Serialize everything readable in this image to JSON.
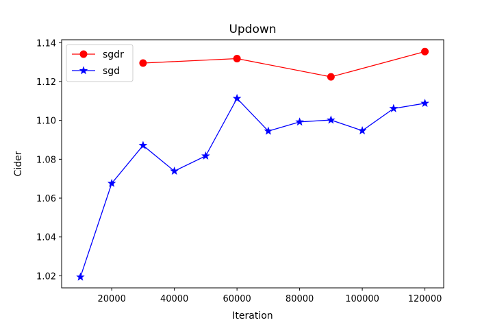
{
  "chart_data": {
    "type": "line",
    "title": "Updown",
    "xlabel": "Iteration",
    "ylabel": "Cider",
    "xlim": [
      4000,
      126000
    ],
    "ylim": [
      1.0138,
      1.1415
    ],
    "xticks": [
      20000,
      40000,
      60000,
      80000,
      100000,
      120000
    ],
    "yticks": [
      1.02,
      1.04,
      1.06,
      1.08,
      1.1,
      1.12,
      1.14
    ],
    "xtick_labels": [
      "20000",
      "40000",
      "60000",
      "80000",
      "100000",
      "120000"
    ],
    "ytick_labels": [
      "1.02",
      "1.04",
      "1.06",
      "1.08",
      "1.10",
      "1.12",
      "1.14"
    ],
    "grid": false,
    "legend_position": "upper-left",
    "series": [
      {
        "name": "sgdr",
        "color": "#ff0000",
        "marker": "circle",
        "x": [
          30000,
          60000,
          90000,
          120000
        ],
        "y": [
          1.1295,
          1.1318,
          1.1224,
          1.1354
        ]
      },
      {
        "name": "sgd",
        "color": "#0000ff",
        "marker": "star",
        "x": [
          10000,
          20000,
          30000,
          40000,
          50000,
          60000,
          70000,
          80000,
          90000,
          100000,
          110000,
          120000
        ],
        "y": [
          1.0194,
          1.0676,
          1.0871,
          1.0739,
          1.0817,
          1.1113,
          1.0945,
          1.0992,
          1.1002,
          1.0947,
          1.1061,
          1.1088
        ]
      }
    ]
  }
}
